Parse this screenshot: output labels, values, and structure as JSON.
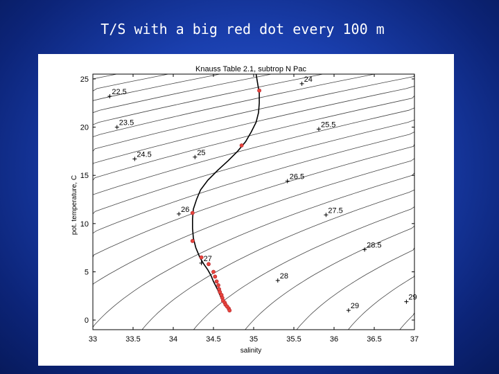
{
  "slide": {
    "title": "T/S with a big red dot every 100 m"
  },
  "chart_data": {
    "type": "line",
    "title": "Knauss Table 2.1, subtrop N Pac",
    "xlabel": "salinity",
    "ylabel": "pot. temperature, C",
    "xlim": [
      33,
      37
    ],
    "ylim": [
      -1,
      25.5
    ],
    "xticks": [
      33,
      33.5,
      34,
      34.5,
      35,
      35.5,
      36,
      36.5,
      37
    ],
    "yticks": [
      0,
      5,
      10,
      15,
      20,
      25
    ],
    "xtick_labels": [
      "33",
      "33.5",
      "34",
      "34.5",
      "35",
      "35.5",
      "36",
      "36.5",
      "37"
    ],
    "ytick_labels": [
      "0",
      "5",
      "10",
      "15",
      "20",
      "25"
    ],
    "grid": false,
    "series": [
      {
        "color": "#000000",
        "s": [
          35.03,
          35.05,
          35.07,
          35.07,
          35.06,
          35.03,
          34.97,
          34.9,
          34.8,
          34.68,
          34.55,
          34.43,
          34.34,
          34.29,
          34.25,
          34.24,
          34.24,
          34.25,
          34.28,
          34.33,
          34.38,
          34.43,
          34.47,
          34.5,
          34.53,
          34.56,
          34.58,
          34.6,
          34.63,
          34.66,
          34.7
        ],
        "t": [
          25.5,
          24.5,
          23.5,
          22.5,
          21.5,
          20.5,
          19.5,
          18.5,
          17.5,
          16.5,
          15.5,
          14.5,
          13.5,
          12.5,
          11.5,
          10.5,
          9.5,
          8.5,
          7.5,
          6.5,
          5.8,
          5.2,
          4.6,
          4.0,
          3.5,
          3.0,
          2.6,
          2.2,
          1.8,
          1.4,
          1.0
        ]
      }
    ],
    "dots": {
      "color": "#e8453c",
      "s": [
        35.07,
        34.85,
        34.24,
        34.24,
        34.35,
        34.44,
        34.5,
        34.52,
        34.54,
        34.56,
        34.57,
        34.58,
        34.6,
        34.61,
        34.62,
        34.64,
        34.65,
        34.67,
        34.69,
        34.7
      ],
      "t": [
        23.8,
        18.1,
        11.1,
        8.2,
        6.5,
        5.8,
        5.0,
        4.5,
        4.0,
        3.6,
        3.2,
        2.9,
        2.6,
        2.3,
        2.0,
        1.8,
        1.6,
        1.4,
        1.2,
        1.0
      ]
    },
    "contour_labels": [
      {
        "text": "22.5",
        "s": 33.21,
        "t": 23.2
      },
      {
        "text": "23.5",
        "s": 33.3,
        "t": 20.0
      },
      {
        "text": "24",
        "s": 35.6,
        "t": 24.5
      },
      {
        "text": "24.5",
        "s": 33.52,
        "t": 16.7
      },
      {
        "text": "25",
        "s": 34.27,
        "t": 16.9
      },
      {
        "text": "25.5",
        "s": 35.81,
        "t": 19.8
      },
      {
        "text": "26",
        "s": 34.07,
        "t": 11.0
      },
      {
        "text": "26.5",
        "s": 35.42,
        "t": 14.4
      },
      {
        "text": "27.5",
        "s": 35.9,
        "t": 10.9
      },
      {
        "text": "27",
        "s": 34.35,
        "t": 5.9
      },
      {
        "text": "28.5",
        "s": 36.38,
        "t": 7.3
      },
      {
        "text": "28",
        "s": 35.3,
        "t": 4.1
      },
      {
        "text": "29",
        "s": 36.18,
        "t": 1.0
      },
      {
        "text": "29",
        "s": 36.9,
        "t": 1.9
      }
    ]
  }
}
